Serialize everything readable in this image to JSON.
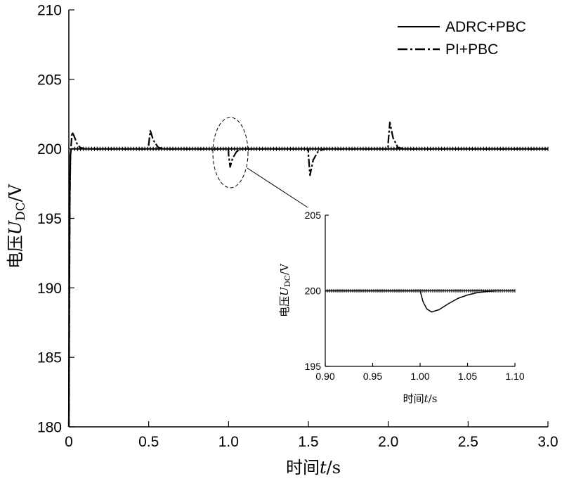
{
  "chart_data": [
    {
      "type": "line",
      "panel": "main",
      "xlabel": {
        "prefix": "时间",
        "var": "t",
        "suffix": "/s"
      },
      "ylabel": {
        "prefix": "电压",
        "var": "U",
        "sub": "DC",
        "suffix": "/V"
      },
      "xlim": [
        0,
        3.0
      ],
      "ylim": [
        180,
        210
      ],
      "xticks": [
        0,
        0.5,
        1.0,
        1.5,
        2.0,
        2.5,
        3.0
      ],
      "xtick_labels": [
        "0",
        "0.5",
        "1.0",
        "1.5",
        "2.0",
        "2.5",
        "3.0"
      ],
      "yticks": [
        180,
        185,
        190,
        195,
        200,
        205,
        210
      ],
      "ytick_labels": [
        "180",
        "185",
        "190",
        "195",
        "200",
        "205",
        "210"
      ],
      "grid": false,
      "legend_position": "top-right",
      "series": [
        {
          "name": "ADRC+PBC",
          "style": "solid",
          "x": [
            0,
            0.003,
            0.006,
            0.01,
            0.015,
            0.02,
            3.0
          ],
          "y": [
            180,
            190,
            197,
            199.6,
            200,
            200,
            200
          ]
        },
        {
          "name": "PI+PBC",
          "style": "dashdot",
          "x": [
            0,
            0.003,
            0.006,
            0.01,
            0.02,
            0.03,
            0.05,
            0.07,
            0.1,
            0.499,
            0.5,
            0.51,
            0.53,
            0.56,
            0.6,
            0.999,
            1.0,
            1.01,
            1.025,
            1.05,
            1.08,
            1.499,
            1.5,
            1.51,
            1.53,
            1.56,
            1.6,
            1.999,
            2.0,
            2.01,
            2.03,
            2.06,
            2.1,
            3.0
          ],
          "y": [
            180,
            188,
            196,
            199.5,
            201.2,
            201,
            200.4,
            200.1,
            200,
            200,
            200.3,
            201.3,
            200.6,
            200.1,
            200,
            200,
            199.6,
            198.7,
            199.3,
            199.8,
            200,
            200,
            199.6,
            198.1,
            199.2,
            199.8,
            200,
            200,
            200.5,
            201.9,
            200.8,
            200.1,
            200,
            200
          ]
        }
      ],
      "annotation": "ellipse highlighting t=1.0 s region, leader line to inset"
    },
    {
      "type": "line",
      "panel": "inset",
      "xlabel": {
        "prefix": "时间",
        "var": "t",
        "suffix": "/s"
      },
      "ylabel": {
        "prefix": "电压",
        "var": "U",
        "sub": "DC",
        "suffix": "/V"
      },
      "xlim": [
        0.9,
        1.1
      ],
      "ylim": [
        195,
        205
      ],
      "xticks": [
        0.9,
        0.95,
        1.0,
        1.05,
        1.1
      ],
      "xtick_labels": [
        "0.90",
        "0.95",
        "1.00",
        "1.05",
        "1.10"
      ],
      "yticks": [
        195,
        200,
        205
      ],
      "ytick_labels": [
        "195",
        "200",
        "205"
      ],
      "grid": false,
      "series": [
        {
          "name": "ADRC+PBC",
          "style": "marked",
          "x": [
            0.9,
            1.1
          ],
          "y": [
            200,
            200
          ]
        },
        {
          "name": "PI+PBC",
          "style": "solid",
          "x": [
            0.9,
            1.0,
            1.003,
            1.007,
            1.012,
            1.02,
            1.03,
            1.04,
            1.05,
            1.06,
            1.07,
            1.08
          ],
          "y": [
            200,
            200,
            199.3,
            198.8,
            198.6,
            198.75,
            199.15,
            199.5,
            199.72,
            199.87,
            199.95,
            200
          ]
        }
      ]
    }
  ]
}
